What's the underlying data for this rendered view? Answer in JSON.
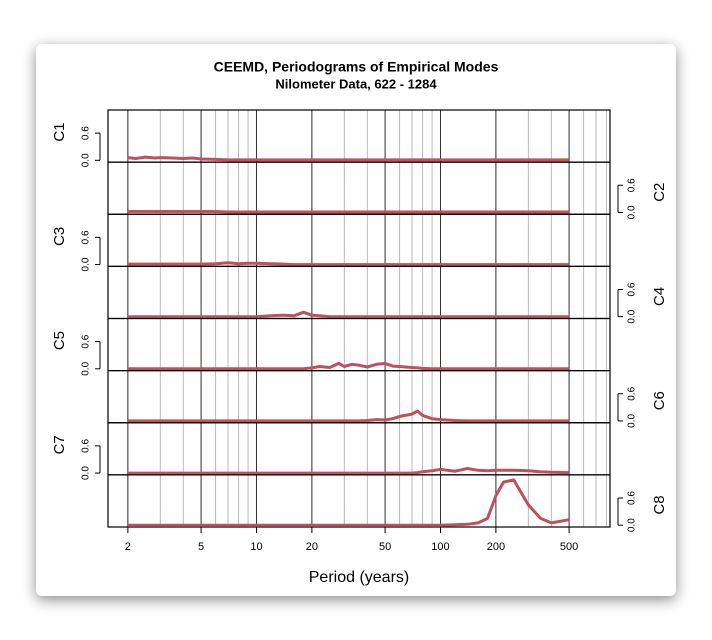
{
  "chart_data": {
    "type": "line",
    "title": "CEEMD, Periodograms of Empirical Modes",
    "subtitle": "Nilometer Data, 622 - 1284",
    "xlabel": "Period (years)",
    "log_x": true,
    "xlim": [
      1.56,
      834
    ],
    "xticks": [
      2,
      5,
      10,
      20,
      50,
      100,
      200,
      500
    ],
    "xgrid": [
      2,
      3,
      4,
      5,
      6,
      7,
      8,
      9,
      10,
      20,
      30,
      40,
      50,
      60,
      70,
      80,
      90,
      100,
      200,
      300,
      400,
      500,
      600,
      700,
      800
    ],
    "ylim": [
      -0.04,
      1.11
    ],
    "yticks": [
      {
        "value": 0,
        "label": "0.0"
      },
      {
        "value": 0.6,
        "label": "0.6"
      }
    ],
    "grid": true,
    "x": [
      2,
      2.2,
      2.5,
      2.8,
      3,
      3.5,
      4,
      4.5,
      5,
      6,
      7,
      8,
      9,
      10,
      12,
      14,
      16,
      18,
      20,
      22,
      25,
      28,
      30,
      33,
      36,
      40,
      45,
      50,
      55,
      60,
      70,
      75,
      80,
      90,
      100,
      120,
      140,
      160,
      180,
      200,
      220,
      250,
      300,
      350,
      400,
      500
    ],
    "series": [
      {
        "name": "C1",
        "color": "#c0505a",
        "axis_side": "left",
        "values": [
          0.06,
          0.04,
          0.07,
          0.05,
          0.06,
          0.05,
          0.04,
          0.05,
          0.03,
          0.02,
          0.01,
          0.01,
          0.01,
          0.01,
          0.01,
          0.01,
          0.01,
          0.01,
          0.01,
          0.01,
          0.01,
          0.01,
          0.01,
          0.01,
          0.01,
          0.01,
          0.01,
          0.01,
          0.01,
          0.01,
          0.01,
          0.01,
          0.01,
          0.01,
          0.01,
          0.01,
          0.01,
          0.01,
          0.01,
          0.01,
          0.01,
          0.01,
          0.01,
          0.01,
          0.01,
          0.01
        ]
      },
      {
        "name": "C2",
        "color": "#c0505a",
        "axis_side": "right",
        "values": [
          0.02,
          0.02,
          0.02,
          0.02,
          0.02,
          0.02,
          0.02,
          0.02,
          0.02,
          0.02,
          0.01,
          0.01,
          0.01,
          0.01,
          0.01,
          0.01,
          0.01,
          0.01,
          0.01,
          0.01,
          0.01,
          0.01,
          0.01,
          0.01,
          0.01,
          0.01,
          0.01,
          0.01,
          0.01,
          0.01,
          0.01,
          0.01,
          0.01,
          0.01,
          0.01,
          0.01,
          0.01,
          0.01,
          0.01,
          0.01,
          0.01,
          0.01,
          0.01,
          0.01,
          0.01,
          0.01
        ]
      },
      {
        "name": "C3",
        "color": "#c0505a",
        "axis_side": "left",
        "values": [
          0.01,
          0.01,
          0.01,
          0.01,
          0.01,
          0.01,
          0.01,
          0.01,
          0.01,
          0.02,
          0.04,
          0.02,
          0.03,
          0.03,
          0.02,
          0.01,
          0,
          0,
          0,
          0,
          0,
          0,
          0,
          0,
          0,
          0,
          0,
          0,
          0,
          0,
          0,
          0,
          0,
          0,
          0,
          0,
          0,
          0,
          0,
          0,
          0,
          0,
          0,
          0,
          0,
          0
        ]
      },
      {
        "name": "C4",
        "color": "#c0505a",
        "axis_side": "right",
        "values": [
          0,
          0,
          0,
          0,
          0,
          0,
          0,
          0,
          0,
          0,
          0,
          0,
          0,
          0,
          0.02,
          0.03,
          0.02,
          0.1,
          0.03,
          0.02,
          0,
          0,
          0,
          0,
          0,
          0,
          0,
          0,
          0,
          0,
          0,
          0,
          0,
          0,
          0,
          0,
          0,
          0,
          0,
          0,
          0,
          0,
          0,
          0,
          0,
          0
        ]
      },
      {
        "name": "C5",
        "color": "#c0505a",
        "axis_side": "left",
        "values": [
          0,
          0,
          0,
          0,
          0,
          0,
          0,
          0,
          0,
          0,
          0,
          0,
          0,
          0,
          0,
          0,
          0,
          0,
          0.02,
          0.05,
          0.03,
          0.12,
          0.05,
          0.1,
          0.08,
          0.04,
          0.1,
          0.12,
          0.06,
          0.05,
          0.03,
          0.02,
          0.01,
          0,
          0,
          0,
          0,
          0,
          0,
          0,
          0,
          0,
          0,
          0,
          0,
          0
        ]
      },
      {
        "name": "C6",
        "color": "#c0505a",
        "axis_side": "right",
        "values": [
          0,
          0,
          0,
          0,
          0,
          0,
          0,
          0,
          0,
          0,
          0,
          0,
          0,
          0,
          0,
          0,
          0,
          0,
          0,
          0,
          0,
          0,
          0,
          0,
          0,
          0.01,
          0.03,
          0.02,
          0.05,
          0.1,
          0.15,
          0.22,
          0.12,
          0.05,
          0.03,
          0.01,
          0,
          0,
          0,
          0,
          0,
          0,
          0,
          0,
          0,
          0
        ]
      },
      {
        "name": "C7",
        "color": "#c0505a",
        "axis_side": "left",
        "values": [
          0,
          0,
          0,
          0,
          0,
          0,
          0,
          0,
          0,
          0,
          0,
          0,
          0,
          0,
          0,
          0,
          0,
          0,
          0,
          0,
          0,
          0,
          0,
          0,
          0,
          0,
          0,
          0,
          0,
          0,
          0,
          0.01,
          0.03,
          0.05,
          0.08,
          0.04,
          0.1,
          0.06,
          0.05,
          0.06,
          0.06,
          0.06,
          0.05,
          0.03,
          0.02,
          0.01
        ]
      },
      {
        "name": "C8",
        "color": "#c0505a",
        "axis_side": "right",
        "values": [
          0,
          0,
          0,
          0,
          0,
          0,
          0,
          0,
          0,
          0,
          0,
          0,
          0,
          0,
          0,
          0,
          0,
          0,
          0,
          0,
          0,
          0,
          0,
          0,
          0,
          0,
          0,
          0,
          0,
          0,
          0,
          0,
          0,
          0,
          0,
          0.01,
          0.02,
          0.05,
          0.15,
          0.65,
          0.95,
          1.0,
          0.45,
          0.15,
          0.05,
          0.12
        ]
      }
    ]
  }
}
